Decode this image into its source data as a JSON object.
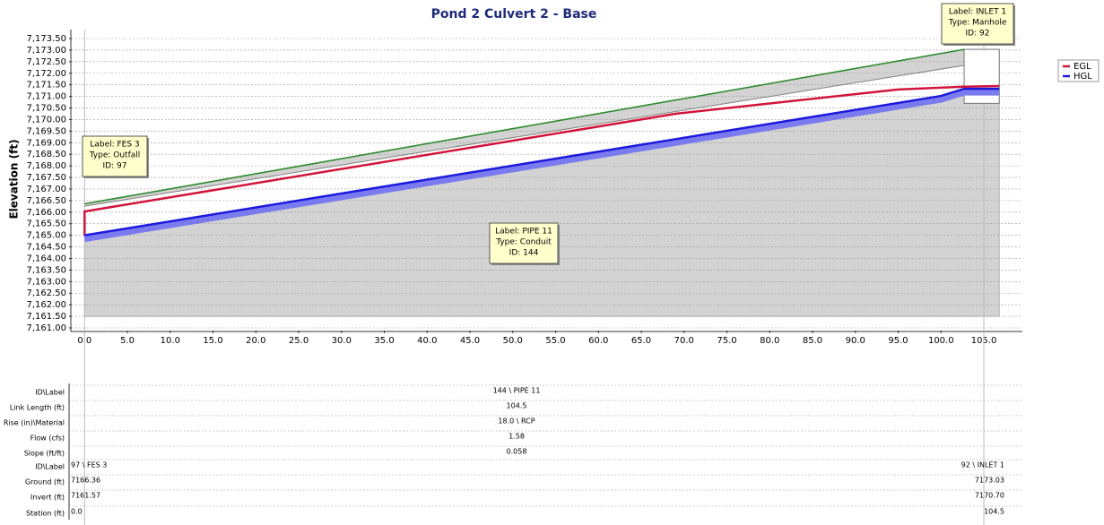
{
  "chart_data": {
    "type": "profile",
    "title": "Pond 2 Culvert 2 - Base",
    "y_label": "Elevation (ft)",
    "xlim": [
      -1.5,
      109.5
    ],
    "ylim": [
      7161.0,
      7173.5
    ],
    "xticks": [
      {
        "value": 0,
        "label": "0.0"
      },
      {
        "value": 5,
        "label": "5.0"
      },
      {
        "value": 10,
        "label": "10.0"
      },
      {
        "value": 15,
        "label": "15.0"
      },
      {
        "value": 20,
        "label": "20.0"
      },
      {
        "value": 25,
        "label": "25.0"
      },
      {
        "value": 30,
        "label": "30.0"
      },
      {
        "value": 35,
        "label": "35.0"
      },
      {
        "value": 40,
        "label": "40.0"
      },
      {
        "value": 45,
        "label": "45.0"
      },
      {
        "value": 50,
        "label": "50.0"
      },
      {
        "value": 55,
        "label": "55.0"
      },
      {
        "value": 60,
        "label": "60.0"
      },
      {
        "value": 65,
        "label": "65.0"
      },
      {
        "value": 70,
        "label": "70.0"
      },
      {
        "value": 75,
        "label": "75.0"
      },
      {
        "value": 80,
        "label": "80.0"
      },
      {
        "value": 85,
        "label": "85.0"
      },
      {
        "value": 90,
        "label": "90.0"
      },
      {
        "value": 95,
        "label": "95.0"
      },
      {
        "value": 100,
        "label": "100.0"
      },
      {
        "value": 105,
        "label": "105.0"
      }
    ],
    "yticks": [
      {
        "value": 7161.0,
        "label": "7,161.00"
      },
      {
        "value": 7161.5,
        "label": "7,161.50"
      },
      {
        "value": 7162.0,
        "label": "7,162.00"
      },
      {
        "value": 7162.5,
        "label": "7,162.50"
      },
      {
        "value": 7163.0,
        "label": "7,163.00"
      },
      {
        "value": 7163.5,
        "label": "7,163.50"
      },
      {
        "value": 7164.0,
        "label": "7,164.00"
      },
      {
        "value": 7164.5,
        "label": "7,164.50"
      },
      {
        "value": 7165.0,
        "label": "7,165.00"
      },
      {
        "value": 7165.5,
        "label": "7,165.50"
      },
      {
        "value": 7166.0,
        "label": "7,166.00"
      },
      {
        "value": 7166.5,
        "label": "7,166.50"
      },
      {
        "value": 7167.0,
        "label": "7,167.00"
      },
      {
        "value": 7167.5,
        "label": "7,167.50"
      },
      {
        "value": 7168.0,
        "label": "7,168.00"
      },
      {
        "value": 7168.5,
        "label": "7,168.50"
      },
      {
        "value": 7169.0,
        "label": "7,169.00"
      },
      {
        "value": 7169.5,
        "label": "7,169.50"
      },
      {
        "value": 7170.0,
        "label": "7,170.00"
      },
      {
        "value": 7170.5,
        "label": "7,170.50"
      },
      {
        "value": 7171.0,
        "label": "7,171.00"
      },
      {
        "value": 7171.5,
        "label": "7,171.50"
      },
      {
        "value": 7172.0,
        "label": "7,172.00"
      },
      {
        "value": 7172.5,
        "label": "7,172.50"
      },
      {
        "value": 7173.0,
        "label": "7,173.00"
      },
      {
        "value": 7173.5,
        "label": "7,173.50"
      }
    ],
    "grid": true,
    "legend": "right",
    "ground": {
      "color": "#2e8b2e",
      "x": [
        0,
        102.7
      ],
      "values": [
        7166.36,
        7173.03
      ]
    },
    "crown": {
      "color": "#808080",
      "x": [
        0,
        102.7
      ],
      "values": [
        7166.26,
        7172.34
      ]
    },
    "manhole": {
      "x": [
        102.7,
        106.8
      ],
      "values": [
        7173.03,
        7170.7
      ]
    },
    "series": [
      {
        "name": "EGL",
        "color": "#d2143c",
        "x": [
          0,
          0,
          69,
          95,
          102.7,
          106.8
        ],
        "values": [
          7165.0,
          7166.03,
          7170.25,
          7171.3,
          7171.42,
          7171.45
        ]
      },
      {
        "name": "HGL",
        "color": "#1a1adc",
        "x": [
          0,
          100,
          102.7,
          106.8
        ],
        "values": [
          7165.0,
          7171.02,
          7171.33,
          7171.33
        ]
      }
    ],
    "annotations": [
      {
        "lines": [
          "Label: FES 3",
          "Type: Outfall",
          "ID: 97"
        ]
      },
      {
        "lines": [
          "Label: PIPE 11",
          "Type: Conduit",
          "ID: 144"
        ]
      },
      {
        "lines": [
          "Label: INLET 1",
          "Type: Manhole",
          "ID: 92"
        ]
      }
    ]
  },
  "table": {
    "link_rows": [
      [
        "ID\\Label",
        "144 \\ PIPE 11"
      ],
      [
        "Link Length (ft)",
        "104.5"
      ],
      [
        "Rise (in)\\Material",
        "18.0 \\ RCP"
      ],
      [
        "Flow (cfs)",
        "1.58"
      ],
      [
        "Slope (ft/ft)",
        "0.058"
      ]
    ],
    "node_rows": [
      [
        "ID\\Label",
        "97 \\ FES 3",
        "92 \\ INLET 1"
      ],
      [
        "Ground (ft)",
        "7166.36",
        "7173.03"
      ],
      [
        "Invert (ft)",
        "7161.57",
        "7170.70"
      ],
      [
        "Station (ft)",
        "0.0",
        "104.5"
      ]
    ]
  }
}
